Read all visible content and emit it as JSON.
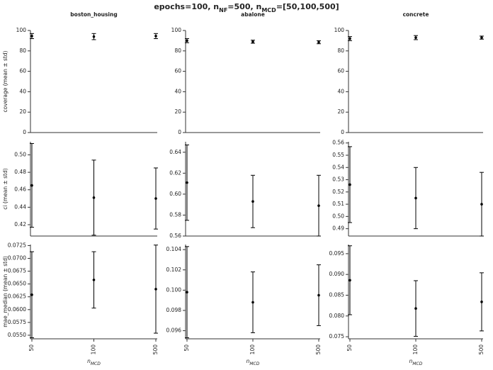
{
  "title": [
    "epochs=100, n",
    "NF",
    "=500, n",
    "MCD",
    "=[50,100,500]"
  ],
  "chart_data": [
    {
      "type": "errorbar",
      "title": "boston_housing",
      "ylabel": "coverage (mean ± std)",
      "categories": [
        null,
        null,
        null
      ],
      "values": [
        94.5,
        94,
        94.5
      ],
      "errors": [
        2.5,
        3,
        2.5
      ],
      "color": "#000000",
      "ylim": [
        0,
        100
      ],
      "yticks": [
        0,
        20,
        40,
        60,
        80,
        100
      ]
    },
    {
      "type": "errorbar",
      "title": "abalone",
      "categories": [
        null,
        null,
        null
      ],
      "values": [
        90,
        89,
        88.5
      ],
      "errors": [
        2,
        1.5,
        1.5
      ],
      "color": "#000000",
      "ylim": [
        0,
        100
      ],
      "yticks": [
        0,
        20,
        40,
        60,
        80,
        100
      ]
    },
    {
      "type": "errorbar",
      "title": "concrete",
      "categories": [
        null,
        null,
        null
      ],
      "values": [
        92,
        93,
        93
      ],
      "errors": [
        2,
        2,
        1.5
      ],
      "color": "#000000",
      "ylim": [
        0,
        100
      ],
      "yticks": [
        0,
        20,
        40,
        60,
        80,
        100
      ]
    },
    {
      "type": "errorbar",
      "ylabel": "ci (mean ± std)",
      "categories": [
        null,
        null,
        null
      ],
      "values": [
        0.465,
        0.451,
        0.45
      ],
      "errors": [
        0.048,
        0.043,
        0.035
      ],
      "color": "#000000",
      "ylim": [
        0.407,
        0.515
      ],
      "yticks": [
        {
          "value": 0.42,
          "label": "0.42"
        },
        {
          "value": 0.44,
          "label": "0.44"
        },
        {
          "value": 0.46,
          "label": "0.46"
        },
        {
          "value": 0.48,
          "label": "0.48"
        },
        {
          "value": 0.5,
          "label": "0.50"
        }
      ]
    },
    {
      "type": "errorbar",
      "categories": [
        null,
        null,
        null
      ],
      "values": [
        0.611,
        0.593,
        0.589
      ],
      "errors": [
        0.036,
        0.025,
        0.029
      ],
      "color": "#000000",
      "ylim": [
        0.56,
        0.65
      ],
      "yticks": [
        {
          "value": 0.56,
          "label": "0.56"
        },
        {
          "value": 0.58,
          "label": "0.58"
        },
        {
          "value": 0.6,
          "label": "0.60"
        },
        {
          "value": 0.62,
          "label": "0.62"
        },
        {
          "value": 0.64,
          "label": "0.64"
        }
      ]
    },
    {
      "type": "errorbar",
      "categories": [
        null,
        null,
        null
      ],
      "values": [
        0.526,
        0.515,
        0.51
      ],
      "errors": [
        0.031,
        0.025,
        0.026
      ],
      "color": "#000000",
      "ylim": [
        0.484,
        0.561
      ],
      "yticks": [
        {
          "value": 0.49,
          "label": "0.49"
        },
        {
          "value": 0.5,
          "label": "0.50"
        },
        {
          "value": 0.51,
          "label": "0.51"
        },
        {
          "value": 0.52,
          "label": "0.52"
        },
        {
          "value": 0.53,
          "label": "0.53"
        },
        {
          "value": 0.54,
          "label": "0.54"
        },
        {
          "value": 0.55,
          "label": "0.55"
        },
        {
          "value": 0.56,
          "label": "0.56"
        }
      ]
    },
    {
      "type": "errorbar",
      "ylabel": "mae_median (mean ± std)",
      "xlabel": [
        "n",
        "MCD"
      ],
      "categories": [
        "50",
        "100",
        "500"
      ],
      "values": [
        0.0629,
        0.0658,
        0.064
      ],
      "errors": [
        0.0084,
        0.0055,
        0.0086
      ],
      "color": "#000000",
      "ylim": [
        0.0543,
        0.0727
      ],
      "yticks": [
        {
          "value": 0.055,
          "label": "0.0550"
        },
        0.0575,
        {
          "value": 0.06,
          "label": "0.0600"
        },
        0.0625,
        {
          "value": 0.065,
          "label": "0.0650"
        },
        0.0675,
        {
          "value": 0.07,
          "label": "0.0700"
        },
        0.0725
      ]
    },
    {
      "type": "errorbar",
      "xlabel": [
        "n",
        "MCD"
      ],
      "categories": [
        "50",
        "100",
        "500"
      ],
      "values": [
        0.0998,
        0.0988,
        0.0995
      ],
      "errors": [
        0.0045,
        0.003,
        0.003
      ],
      "color": "#000000",
      "ylim": [
        0.0952,
        0.1045
      ],
      "yticks": [
        0.096,
        0.098,
        {
          "value": 0.1,
          "label": "0.100"
        },
        0.102,
        0.104
      ]
    },
    {
      "type": "errorbar",
      "xlabel": [
        "n",
        "MCD"
      ],
      "categories": [
        "50",
        "100",
        "500"
      ],
      "values": [
        0.0886,
        0.0818,
        0.0834
      ],
      "errors": [
        0.0083,
        0.0067,
        0.007
      ],
      "color": "#000000",
      "ylim": [
        0.0745,
        0.0972
      ],
      "yticks": [
        0.075,
        {
          "value": 0.08,
          "label": "0.080"
        },
        0.085,
        {
          "value": 0.09,
          "label": "0.090"
        },
        0.095
      ]
    }
  ]
}
